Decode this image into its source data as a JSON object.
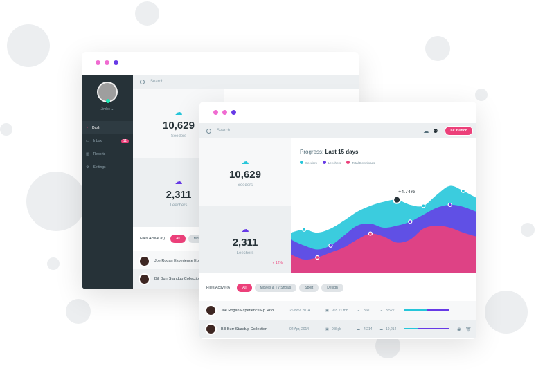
{
  "colors": {
    "seeders": "#26c6da",
    "leechers": "#673ae6",
    "total": "#ec407a",
    "sidebar": "#263238"
  },
  "back": {
    "user": "Jimbo",
    "search_placeholder": "Search...",
    "sidebar": [
      {
        "label": "Dash",
        "icon": "dashboard-icon"
      },
      {
        "label": "Inbox",
        "icon": "inbox-icon",
        "badge": "11"
      },
      {
        "label": "Reports",
        "icon": "chart-icon"
      },
      {
        "label": "Settings",
        "icon": "gear-icon"
      }
    ],
    "seeders": {
      "value": "10,629",
      "label": "Seeders"
    },
    "leechers": {
      "value": "2,311",
      "label": "Leechers"
    },
    "files_title": "Files Active (6)",
    "filters": [
      "All",
      "Movies"
    ],
    "rows": [
      "Joe Rogan Experience Ep. 468",
      "Bill Burr Standup Collection"
    ]
  },
  "front": {
    "search_placeholder": "Search...",
    "button": "Le' Button",
    "seeders": {
      "value": "10,629",
      "label": "Seeders"
    },
    "leechers": {
      "value": "2,311",
      "label": "Leechers",
      "change": "↘ 12%"
    },
    "progress_label": "Progress:",
    "progress_range": "Last 15 days",
    "tooltip": "+4.74%",
    "files_title": "Files Active (6)",
    "filters": [
      "All",
      "Movies & TV Shows",
      "Sport",
      "Design"
    ],
    "rows": [
      {
        "name": "Joe Rogan Experience Ep. 468",
        "date": "26 Nov, 2014",
        "size": "965.21 mb",
        "leech": "860",
        "seed": "3,522",
        "progress": 0.5
      },
      {
        "name": "Bill Burr Standup Collection",
        "date": "02 Apr, 2014",
        "size": "9.8 gb",
        "leech": "4,214",
        "seed": "19,214",
        "progress": 0.3
      }
    ]
  },
  "chart_data": {
    "type": "area",
    "title": "Progress: Last 15 days",
    "x": [
      1,
      2,
      3,
      4,
      5,
      6,
      7,
      8,
      9,
      10,
      11,
      12,
      13,
      14,
      15
    ],
    "ylim": [
      0,
      100
    ],
    "grid": false,
    "legend": "top-left",
    "series": [
      {
        "name": "Seeders",
        "color": "#26c6da",
        "values": [
          41,
          44,
          41,
          45,
          53,
          62,
          68,
          72,
          74,
          69,
          68,
          79,
          88,
          83,
          76
        ]
      },
      {
        "name": "Leechers",
        "color": "#673ae6",
        "values": [
          34,
          28,
          24,
          28,
          38,
          48,
          50,
          46,
          48,
          52,
          59,
          66,
          69,
          67,
          62
        ]
      },
      {
        "name": "Total Downloads",
        "color": "#ec407a",
        "values": [
          19,
          14,
          16,
          21,
          26,
          34,
          40,
          37,
          31,
          34,
          45,
          48,
          46,
          41,
          37
        ]
      }
    ],
    "annotation": {
      "x": 9,
      "series": "Seeders",
      "text": "+4.74%"
    }
  }
}
